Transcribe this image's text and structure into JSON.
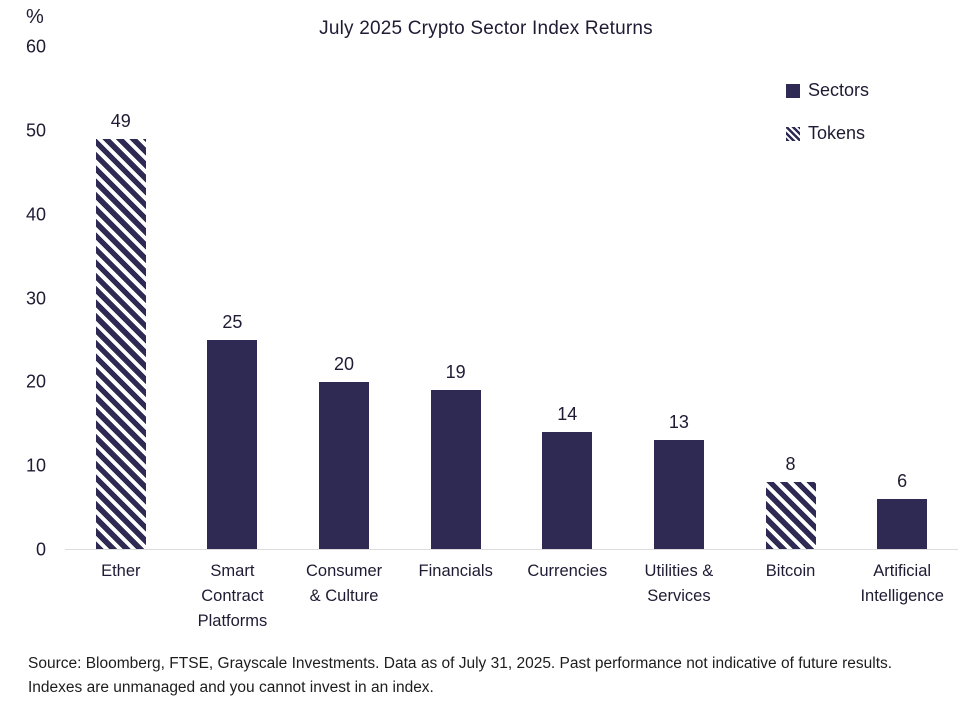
{
  "chart_data": {
    "type": "bar",
    "title": "July 2025 Crypto Sector Index Returns",
    "ylabel": "%",
    "ylim": [
      0,
      60
    ],
    "yticks": [
      0,
      10,
      20,
      30,
      40,
      50,
      60
    ],
    "grid": false,
    "legend_position": "top-right",
    "categories": [
      "Ether",
      "Smart Contract Platforms",
      "Consumer & Culture",
      "Financials",
      "Currencies",
      "Utilities & Services",
      "Bitcoin",
      "Artificial Intelligence"
    ],
    "category_label_lines": [
      [
        "Ether"
      ],
      [
        "Smart",
        "Contract",
        "Platforms"
      ],
      [
        "Consumer",
        "& Culture"
      ],
      [
        "Financials"
      ],
      [
        "Currencies"
      ],
      [
        "Utilities &",
        "Services"
      ],
      [
        "Bitcoin"
      ],
      [
        "Artificial",
        "Intelligence"
      ]
    ],
    "values": [
      49,
      25,
      20,
      19,
      14,
      13,
      8,
      6
    ],
    "bar_styles": [
      "tokens",
      "sectors",
      "sectors",
      "sectors",
      "sectors",
      "sectors",
      "tokens",
      "sectors"
    ],
    "legend": [
      {
        "label": "Sectors",
        "style": "sectors"
      },
      {
        "label": "Tokens",
        "style": "tokens"
      }
    ],
    "colors": {
      "bar_navy": "#2f2a54",
      "hatch_gap": "#ffffff",
      "axis_line": "#dcdcdc",
      "text": "#1e1b33"
    }
  },
  "footer": {
    "source": "Source: Bloomberg, FTSE, Grayscale Investments. Data as of July 31, 2025. Past performance not indicative of future results. Indexes are unmanaged and you cannot invest in an index."
  }
}
